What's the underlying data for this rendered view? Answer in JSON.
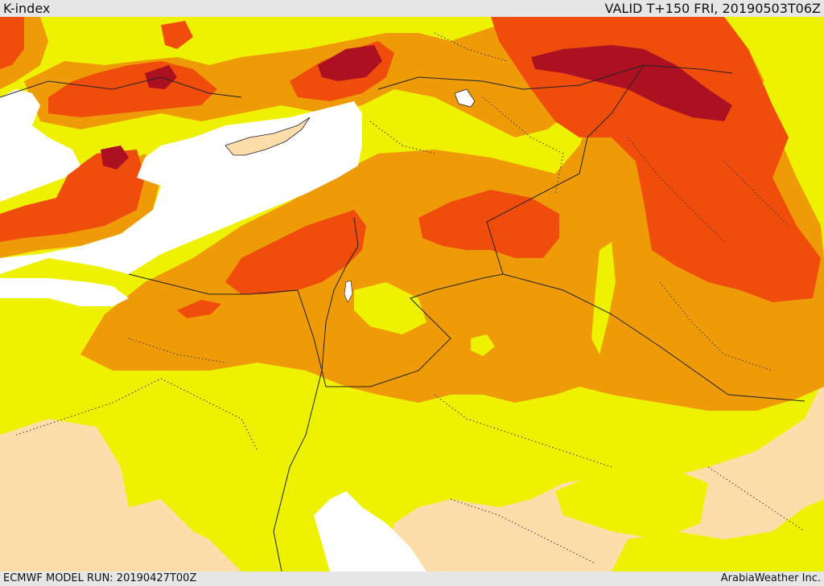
{
  "header": {
    "title": "K-index",
    "valid_time": "VALID T+150 FRI, 20190503T06Z"
  },
  "footer": {
    "model_run": "ECMWF MODEL RUN: 20190427T00Z",
    "credit": "ArabiaWeather Inc."
  },
  "map": {
    "field": "K-index",
    "colors": {
      "low": "#fddeab",
      "yellow": "#eef200",
      "orange": "#ef9b07",
      "red": "#f04d0c",
      "dark_red": "#ab1120",
      "sea": "#ffffff",
      "border": "#222222"
    }
  }
}
